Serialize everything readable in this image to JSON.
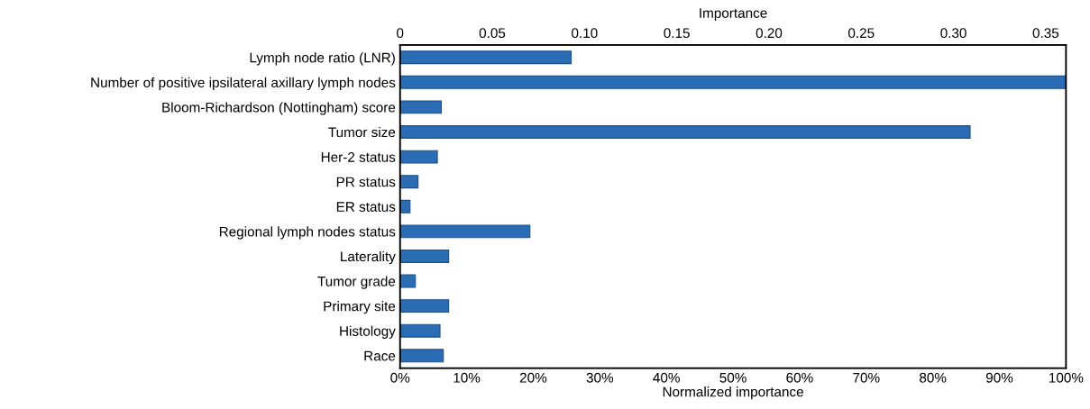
{
  "chart_data": {
    "type": "bar",
    "orientation": "horizontal",
    "categories": [
      "Lymph node ratio (LNR)",
      "Number of positive ipsilateral axillary lymph nodes",
      "Bloom-Richardson (Nottingham) score",
      "Tumor size",
      "Her-2 status",
      "PR status",
      "ER status",
      "Regional lymph nodes status",
      "Laterality",
      "Tumor grade",
      "Primary site",
      "Histology",
      "Race"
    ],
    "values": [
      25.7,
      100,
      6.2,
      85.6,
      5.6,
      2.7,
      1.5,
      19.5,
      7.3,
      2.3,
      7.3,
      6.0,
      6.5
    ],
    "color": "#2a6db5",
    "xlabel": "Normalized importance",
    "xlim": [
      0,
      100
    ],
    "xticks": [
      {
        "value": 0,
        "label": "0%"
      },
      {
        "value": 10,
        "label": "10%"
      },
      {
        "value": 20,
        "label": "20%"
      },
      {
        "value": 30,
        "label": "30%"
      },
      {
        "value": 40,
        "label": "40%"
      },
      {
        "value": 50,
        "label": "50%"
      },
      {
        "value": 60,
        "label": "60%"
      },
      {
        "value": 70,
        "label": "70%"
      },
      {
        "value": 80,
        "label": "80%"
      },
      {
        "value": 90,
        "label": "90%"
      },
      {
        "value": 100,
        "label": "100%"
      }
    ],
    "x2label": "Importance",
    "x2lim": [
      0,
      0.361
    ],
    "x2ticks": [
      0,
      {
        "value": 0.05,
        "label": "0.05"
      },
      {
        "value": 0.1,
        "label": "0.10"
      },
      {
        "value": 0.15,
        "label": "0.15"
      },
      {
        "value": 0.2,
        "label": "0.20"
      },
      {
        "value": 0.25,
        "label": "0.25"
      },
      {
        "value": 0.3,
        "label": "0.30"
      },
      {
        "value": 0.35,
        "label": "0.35"
      }
    ],
    "grid": false,
    "legend": false
  }
}
